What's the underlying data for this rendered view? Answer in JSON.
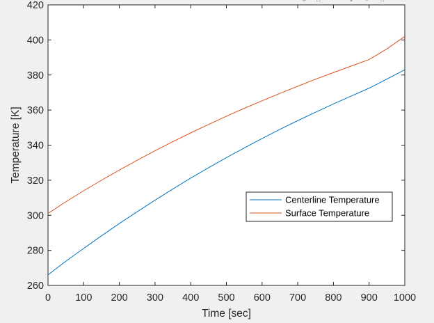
{
  "figure": {
    "background": "#f0f0f0",
    "toolbar_icons": [
      "rotate-icon",
      "data-tip-icon",
      "brush-icon",
      "pan-icon",
      "zoom-icon",
      "home-icon"
    ]
  },
  "chart_data": {
    "type": "line",
    "xlabel": "Time [sec]",
    "ylabel": "Temperature [K]",
    "xlim": [
      0,
      1000
    ],
    "ylim": [
      260,
      420
    ],
    "xticks": [
      0,
      100,
      200,
      300,
      400,
      500,
      600,
      700,
      800,
      900,
      1000
    ],
    "yticks": [
      260,
      280,
      300,
      320,
      340,
      360,
      380,
      400,
      420
    ],
    "grid": false,
    "legend_position": "center-right",
    "series": [
      {
        "name": "Centerline Temperature",
        "color": "#0072bd",
        "x": [
          0,
          50,
          100,
          150,
          200,
          250,
          300,
          350,
          400,
          450,
          500,
          550,
          600,
          650,
          700,
          750,
          800,
          850,
          900,
          950,
          1000
        ],
        "y": [
          266,
          273.8,
          281.1,
          288.3,
          295.3,
          302.0,
          308.6,
          315.0,
          321.2,
          327.1,
          332.9,
          338.4,
          343.8,
          349.0,
          354.0,
          358.8,
          363.5,
          368.0,
          372.5,
          377.7,
          383
        ]
      },
      {
        "name": "Surface Temperature",
        "color": "#d95319",
        "x": [
          0,
          50,
          100,
          150,
          200,
          250,
          300,
          350,
          400,
          450,
          500,
          550,
          600,
          650,
          700,
          750,
          800,
          850,
          900,
          950,
          1000
        ],
        "y": [
          301,
          307.7,
          314.0,
          320.0,
          325.8,
          331.4,
          336.8,
          342.0,
          347.0,
          351.8,
          356.5,
          361.0,
          365.3,
          369.5,
          373.6,
          377.6,
          381.4,
          385.1,
          388.8,
          394.9,
          402
        ]
      }
    ]
  }
}
